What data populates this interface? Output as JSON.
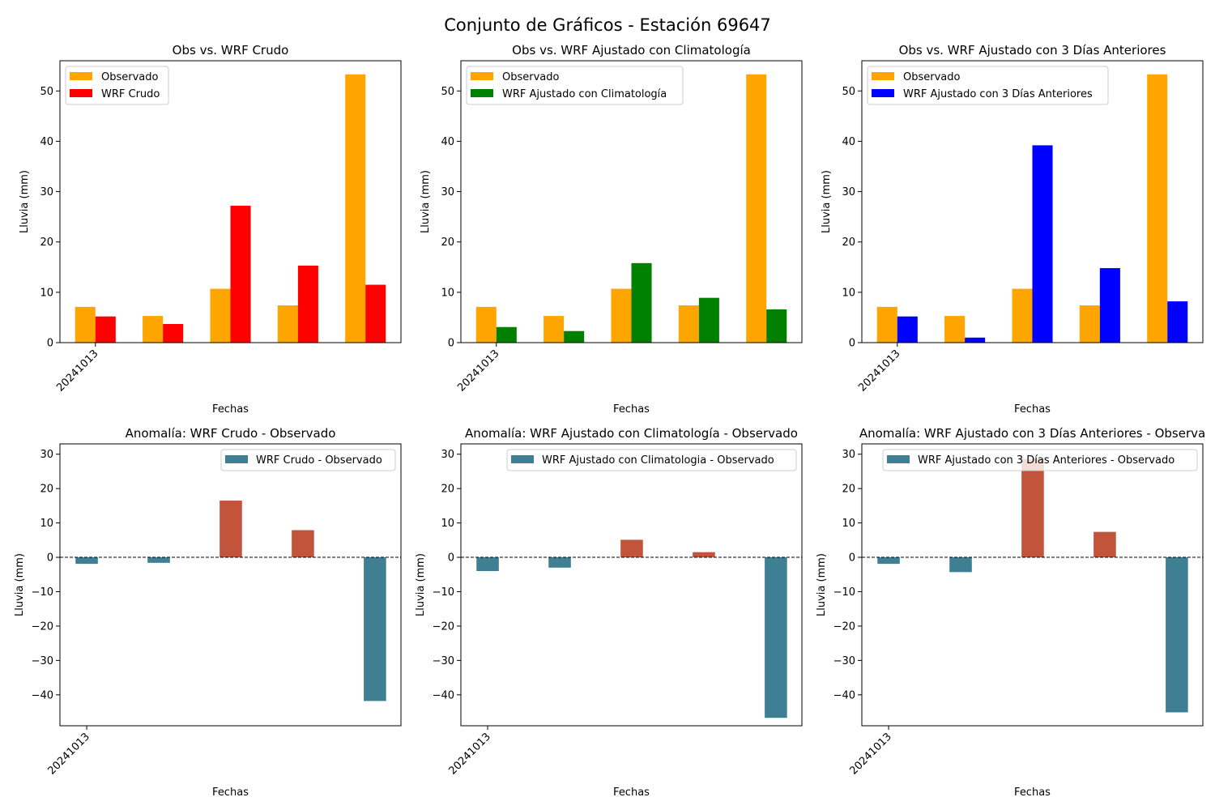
{
  "figure": {
    "title": "Conjunto de Gráficos - Estación 69647"
  },
  "chart_data": [
    {
      "type": "bar",
      "title": "Obs vs. WRF Crudo",
      "xlabel": "Fechas",
      "ylabel": "Lluvia (mm)",
      "x_tick_labels": [
        "20241013"
      ],
      "y_ticks": [
        0,
        10,
        20,
        30,
        40,
        50
      ],
      "ylim": [
        0,
        56
      ],
      "legend_position": "upper left",
      "series": [
        {
          "name": "Observado",
          "color": "#ffa500",
          "values": [
            7.1,
            5.3,
            10.7,
            7.4,
            53.3
          ]
        },
        {
          "name": "WRF Crudo",
          "color": "#ff0000",
          "values": [
            5.2,
            3.7,
            27.2,
            15.3,
            11.5
          ]
        }
      ]
    },
    {
      "type": "bar",
      "title": "Obs vs. WRF Ajustado con Climatología",
      "xlabel": "Fechas",
      "ylabel": "Lluvia (mm)",
      "x_tick_labels": [
        "20241013"
      ],
      "y_ticks": [
        0,
        10,
        20,
        30,
        40,
        50
      ],
      "ylim": [
        0,
        56
      ],
      "legend_position": "upper left",
      "series": [
        {
          "name": "Observado",
          "color": "#ffa500",
          "values": [
            7.1,
            5.3,
            10.7,
            7.4,
            53.3
          ]
        },
        {
          "name": "WRF Ajustado con Climatología",
          "color": "#008000",
          "values": [
            3.1,
            2.3,
            15.8,
            8.9,
            6.6
          ]
        }
      ]
    },
    {
      "type": "bar",
      "title": "Obs vs. WRF Ajustado con 3 Días Anteriores",
      "xlabel": "Fechas",
      "ylabel": "Lluvia (mm)",
      "x_tick_labels": [
        "20241013"
      ],
      "y_ticks": [
        0,
        10,
        20,
        30,
        40,
        50
      ],
      "ylim": [
        0,
        56
      ],
      "legend_position": "upper left",
      "series": [
        {
          "name": "Observado",
          "color": "#ffa500",
          "values": [
            7.1,
            5.3,
            10.7,
            7.4,
            53.3
          ]
        },
        {
          "name": "WRF Ajustado con 3 Días Anteriores",
          "color": "#0000ff",
          "values": [
            5.2,
            1.0,
            39.2,
            14.8,
            8.2
          ]
        }
      ]
    },
    {
      "type": "bar",
      "title": "Anomalía: WRF Crudo - Observado",
      "xlabel": "Fechas",
      "ylabel": "Lluvia (mm)",
      "x_tick_labels": [
        "20241013"
      ],
      "y_ticks": [
        -40,
        -30,
        -20,
        -10,
        0,
        10,
        20,
        30
      ],
      "ylim": [
        -49,
        33
      ],
      "legend_position": "upper right",
      "positive_color": "#c1543a",
      "negative_color": "#3f7f93",
      "zero_line": "dashed",
      "series": [
        {
          "name": "WRF Crudo - Observado",
          "color": "#3f7f93",
          "values": [
            -1.9,
            -1.6,
            16.5,
            7.9,
            -41.8
          ]
        }
      ]
    },
    {
      "type": "bar",
      "title": "Anomalía: WRF Ajustado con Climatología - Observado",
      "xlabel": "Fechas",
      "ylabel": "Lluvia (mm)",
      "x_tick_labels": [
        "20241013"
      ],
      "y_ticks": [
        -40,
        -30,
        -20,
        -10,
        0,
        10,
        20,
        30
      ],
      "ylim": [
        -49,
        33
      ],
      "legend_position": "upper right",
      "positive_color": "#c1543a",
      "negative_color": "#3f7f93",
      "zero_line": "dashed",
      "series": [
        {
          "name": "WRF Ajustado con Climatologia - Observado",
          "color": "#3f7f93",
          "values": [
            -4.0,
            -3.0,
            5.1,
            1.5,
            -46.7
          ]
        }
      ]
    },
    {
      "type": "bar",
      "title": "Anomalía: WRF Ajustado con 3 Días Anteriores - Observa",
      "xlabel": "Fechas",
      "ylabel": "Lluvia (mm)",
      "x_tick_labels": [
        "20241013"
      ],
      "y_ticks": [
        -40,
        -30,
        -20,
        -10,
        0,
        10,
        20,
        30
      ],
      "ylim": [
        -49,
        33
      ],
      "legend_position": "upper right",
      "positive_color": "#c1543a",
      "negative_color": "#3f7f93",
      "zero_line": "dashed",
      "series": [
        {
          "name": "WRF Ajustado con 3 Días Anteriores - Observado",
          "color": "#3f7f93",
          "values": [
            -1.9,
            -4.3,
            28.5,
            7.4,
            -45.1
          ]
        }
      ]
    }
  ]
}
